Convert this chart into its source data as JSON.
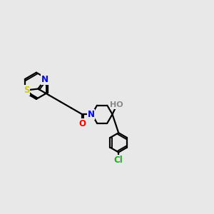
{
  "background_color": "#e8e8e8",
  "bond_color": "#000000",
  "S_color": "#cccc00",
  "N_color": "#0000ff",
  "O_color": "#ff0000",
  "Cl_color": "#22aa22",
  "H_color": "#888888",
  "line_width": 1.6,
  "figsize": [
    3.0,
    3.0
  ],
  "dpi": 100,
  "xlim": [
    0,
    12
  ],
  "ylim": [
    0,
    10
  ]
}
